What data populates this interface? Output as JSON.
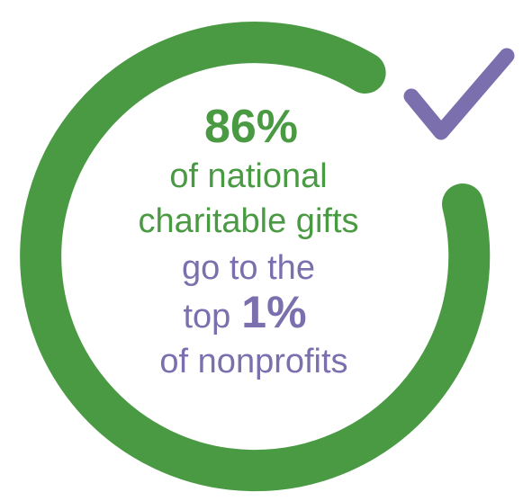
{
  "headline": {
    "stat": "86%",
    "line1": "of national",
    "line2": "charitable gifts"
  },
  "tail": {
    "line1": "go to the",
    "lead": "top",
    "stat": "1%",
    "line3": "of nonprofits"
  }
}
